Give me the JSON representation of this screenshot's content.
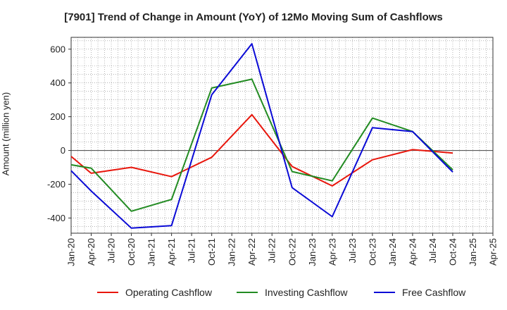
{
  "chart_data": {
    "type": "line",
    "title": "[7901]  Trend of Change in Amount (YoY) of 12Mo Moving Sum of Cashflows",
    "xlabel": "",
    "ylabel": "Amount (million yen)",
    "ylim": [
      -490,
      670
    ],
    "yticks": [
      -400,
      -200,
      0,
      200,
      400,
      600
    ],
    "grid": true,
    "legend_position": "bottom",
    "categories": [
      "Jan-20",
      "Apr-20",
      "Jul-20",
      "Oct-20",
      "Jan-21",
      "Apr-21",
      "Jul-21",
      "Oct-21",
      "Jan-22",
      "Apr-22",
      "Jul-22",
      "Oct-22",
      "Jan-23",
      "Apr-23",
      "Jul-23",
      "Oct-23",
      "Jan-24",
      "Apr-24",
      "Jul-24",
      "Oct-24",
      "Jan-25",
      "Apr-25"
    ],
    "series": [
      {
        "name": "Operating Cashflow",
        "color": "#e8160c",
        "values": [
          -35,
          -135,
          null,
          -100,
          null,
          -155,
          null,
          -40,
          null,
          212,
          null,
          -95,
          null,
          -210,
          null,
          -55,
          null,
          5,
          null,
          -15,
          null,
          null
        ]
      },
      {
        "name": "Investing Cashflow",
        "color": "#228b22",
        "values": [
          -85,
          -105,
          null,
          -360,
          null,
          -290,
          null,
          370,
          null,
          422,
          null,
          -125,
          null,
          -180,
          null,
          192,
          null,
          112,
          null,
          -115,
          null,
          null
        ]
      },
      {
        "name": "Free Cashflow",
        "color": "#0a0ad6",
        "values": [
          -120,
          -240,
          null,
          -460,
          null,
          -445,
          null,
          330,
          null,
          632,
          null,
          -220,
          null,
          -392,
          null,
          135,
          null,
          112,
          null,
          -128,
          null,
          null
        ]
      }
    ]
  }
}
